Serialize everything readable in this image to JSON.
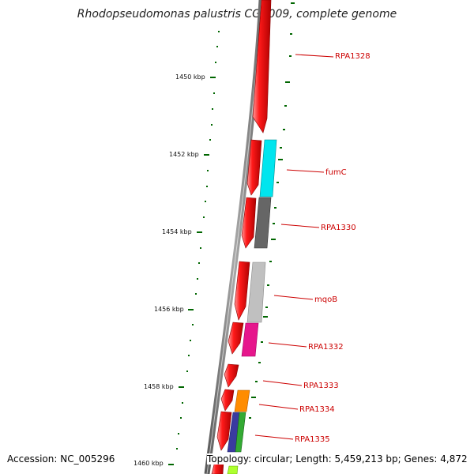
{
  "title": "Rhodopseudomonas palustris CGA009, complete genome",
  "footer": {
    "accession": "Accession: NC_005296",
    "summary": "Topology: circular; Length: 5,459,213 bp; Genes: 4,872"
  },
  "kbp_labels": [
    "1450 kbp",
    "1452 kbp",
    "1454 kbp",
    "1456 kbp",
    "1458 kbp",
    "1460 kbp"
  ],
  "gene_labels": [
    "RPA1328",
    "fumC",
    "RPA1330",
    "mqoB",
    "RPA1332",
    "RPA1333",
    "RPA1334",
    "RPA1335"
  ],
  "colors": {
    "forward_strand": "#ee0000",
    "backbone": "#808080",
    "tick": "#006600",
    "label": "#cc0000",
    "fumC": "#00e5ee",
    "RPA1330": "#666666",
    "mqoB": "#c0c0c0",
    "RPA1332": "#e6168c",
    "RPA1334": "#ff8c00",
    "RPA1335_a": "#3a3aa0",
    "RPA1335_b": "#33aa33",
    "tail": "#adff2f"
  }
}
